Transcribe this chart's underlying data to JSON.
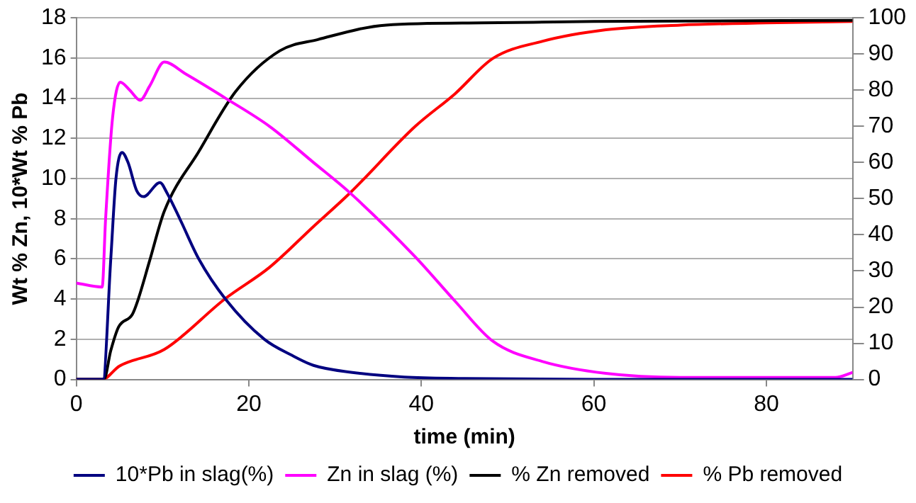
{
  "chart_data": {
    "type": "line",
    "xlabel": "time (min)",
    "ylabel": "Wt % Zn, 10*Wt % Pb",
    "xlim": [
      0,
      90
    ],
    "xticks": [
      0,
      20,
      40,
      60,
      80
    ],
    "ylim": [
      0,
      18
    ],
    "yticks": [
      0,
      2,
      4,
      6,
      8,
      10,
      12,
      14,
      16,
      18
    ],
    "y2lim": [
      0,
      100
    ],
    "y2ticks": [
      0,
      10,
      20,
      30,
      40,
      50,
      60,
      70,
      80,
      90,
      100
    ],
    "grid": "y",
    "legend": "bottom",
    "marker": "none",
    "line_style": "solid",
    "series": [
      {
        "name": "10*Pb in slag(%)",
        "color": "#000080",
        "x": [
          0,
          2.5,
          3.1,
          4,
          4.6,
          5.3,
          6,
          7,
          7.8,
          9.7,
          10.5,
          12,
          14.2,
          17.3,
          21.8,
          25,
          27.5,
          32,
          38,
          45,
          60,
          90
        ],
        "values": [
          0,
          0,
          0,
          6,
          10,
          11.3,
          10.8,
          9.4,
          9.1,
          9.8,
          9.3,
          8,
          6,
          4,
          2,
          1.2,
          0.7,
          0.35,
          0.12,
          0.05,
          0,
          0
        ]
      },
      {
        "name": "Zn in slag (%)",
        "color": "#ff00ff",
        "x": [
          0,
          3,
          3.4,
          4.2,
          5.1,
          6.2,
          7.4,
          8.5,
          10.2,
          12.7,
          17.3,
          22.4,
          27.5,
          31.7,
          39.3,
          43.9,
          48.3,
          54,
          61.4,
          70,
          80,
          88,
          90
        ],
        "values": [
          4.8,
          4.6,
          8,
          13,
          14.8,
          14.4,
          13.9,
          14.6,
          15.8,
          15.2,
          14,
          12.6,
          10.8,
          9.3,
          6.1,
          3.9,
          1.9,
          0.9,
          0.3,
          0.1,
          0.1,
          0.1,
          0.35
        ]
      },
      {
        "name": "% Zn removed",
        "color": "#000000",
        "axis": "y2",
        "x": [
          0,
          3.2,
          4,
          4.9,
          6.5,
          7.1,
          8.5,
          10.2,
          14.2,
          18.5,
          23.6,
          28,
          35.9,
          47,
          60,
          90
        ],
        "values": [
          0,
          0,
          8,
          14.5,
          18,
          21.6,
          32.8,
          46.5,
          63,
          79.7,
          90.9,
          94,
          98,
          98.6,
          99,
          99.3
        ]
      },
      {
        "name": "% Pb removed",
        "color": "#ff0000",
        "axis": "y2",
        "x": [
          0,
          3,
          5,
          10.2,
          17.3,
          22.4,
          27.5,
          31.7,
          39.3,
          43.9,
          48.3,
          54,
          61.4,
          70,
          80,
          90
        ],
        "values": [
          0,
          0,
          3.7,
          8.3,
          22.4,
          31,
          42.3,
          51.5,
          70,
          79,
          88.8,
          93.5,
          96.7,
          98,
          98.6,
          99
        ]
      }
    ]
  }
}
